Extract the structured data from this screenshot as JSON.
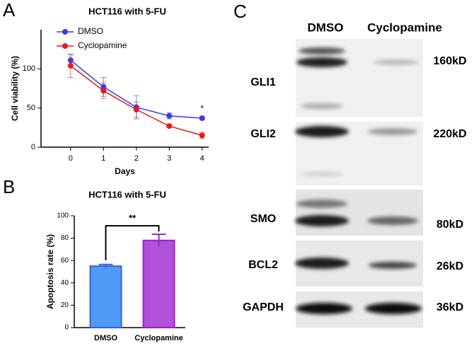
{
  "panel_labels": [
    "A",
    "B",
    "C"
  ],
  "chart_data": [
    {
      "type": "line",
      "title": "HCT116 with 5-FU",
      "x": [
        0,
        1,
        2,
        3,
        4
      ],
      "xlim": [
        -0.9,
        4.2
      ],
      "xticks": [
        0,
        1,
        2,
        3,
        4
      ],
      "ylim": [
        0,
        150
      ],
      "yticks": [
        0,
        50,
        100
      ],
      "x_label": "Days",
      "y_label": "Cell viability (%)",
      "legend": "upper left",
      "annotation": "*",
      "series": [
        {
          "name": "DMSO",
          "color": "#3a3ae6",
          "values": [
            111,
            77,
            51,
            40,
            37
          ],
          "errors": [
            7,
            12,
            15,
            4,
            2
          ]
        },
        {
          "name": "Cyclopamine",
          "color": "#e01e1e",
          "values": [
            104,
            72,
            48,
            27,
            15
          ],
          "errors": [
            15,
            10,
            10,
            2,
            4
          ]
        }
      ]
    },
    {
      "type": "bar",
      "title": "HCT116 with 5-FU",
      "categories": [
        "DMSO",
        "Cyclopamine"
      ],
      "values": [
        55,
        78
      ],
      "errors": [
        1.5,
        5.5
      ],
      "colors": [
        "#4f9bf5",
        "#b150d8"
      ],
      "edge_colors": [
        "#3b5fd8",
        "#9a22c8"
      ],
      "ylim": [
        0,
        100
      ],
      "yticks": [
        0,
        20,
        40,
        60,
        80,
        100
      ],
      "y_label": "Apoptosis rate (%)",
      "annotation": "**"
    }
  ],
  "blot": {
    "lanes": [
      "DMSO",
      "Cyclopamine"
    ],
    "rows": [
      {
        "protein": "GLI1",
        "size": "160kD"
      },
      {
        "protein": "GLI2",
        "size": "220kD"
      },
      {
        "protein": "SMO",
        "size": "80kD"
      },
      {
        "protein": "BCL2",
        "size": "26kD"
      },
      {
        "protein": "GAPDH",
        "size": "36kD"
      }
    ]
  }
}
